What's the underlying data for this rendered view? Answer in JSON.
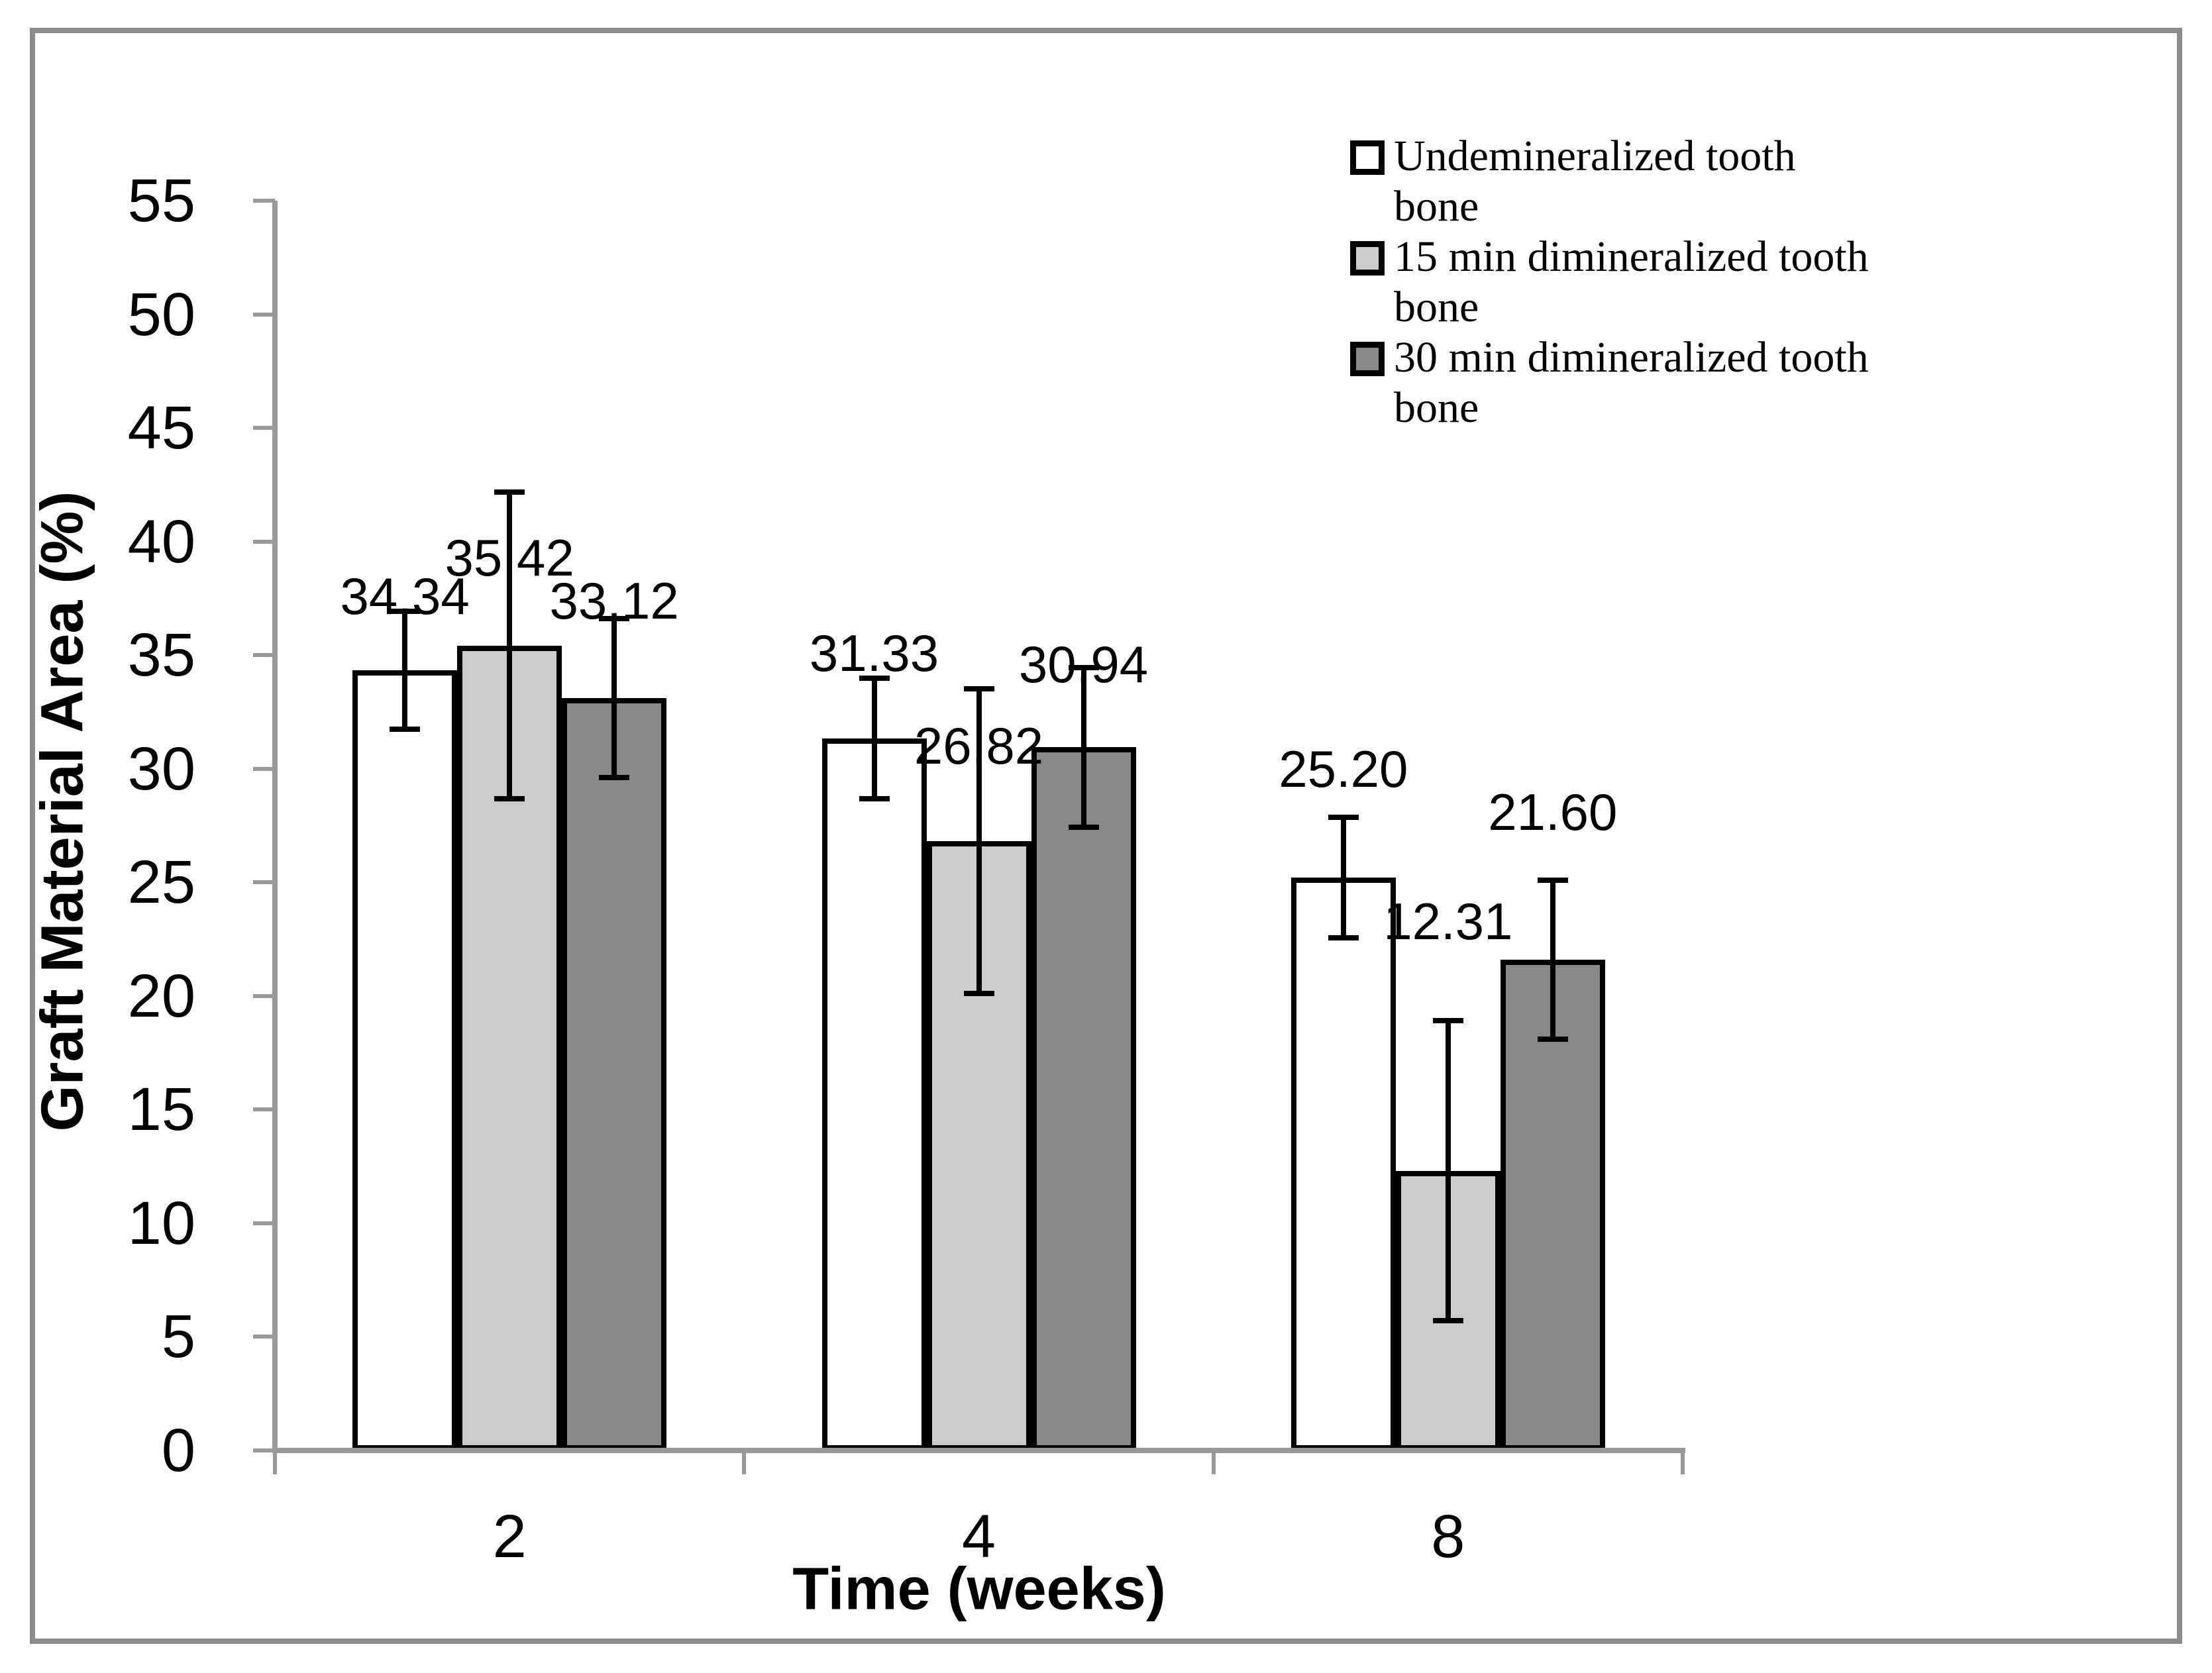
{
  "figure": {
    "background": "#ffffff",
    "border_color": "#8c8c8c",
    "axis_color": "#999999"
  },
  "chart_data": {
    "type": "bar",
    "title": "",
    "xlabel": "Time (weeks)",
    "ylabel": "Graft Material Area (%)",
    "ylim": [
      0,
      55
    ],
    "ytick_step": 5,
    "y_ticks": [
      0,
      5,
      10,
      15,
      20,
      25,
      30,
      35,
      40,
      45,
      50,
      55
    ],
    "categories": [
      "2",
      "4",
      "8"
    ],
    "grid": false,
    "legend_position": "top-right",
    "bar_outline": "#000000",
    "error_bars": "symmetric, black with caps",
    "series": [
      {
        "name": "Undemineralized tooth bone",
        "legend_lines": [
          "Undemineralized tooth",
          "bone"
        ],
        "fill": "#ffffff",
        "values": [
          34.34,
          31.33,
          25.2
        ],
        "labels": [
          "34.34",
          "31.33",
          "25.20"
        ],
        "errors": [
          2.6,
          2.65,
          2.65
        ],
        "label_y": [
          37.6,
          35.1,
          30.0
        ]
      },
      {
        "name": "15 min dimineralized tooth bone",
        "legend_lines": [
          "15 min dimineralized tooth",
          "bone"
        ],
        "fill": "#cccccc",
        "values": [
          35.42,
          26.82,
          12.31
        ],
        "labels": [
          "35.42",
          "26.82",
          "12.31"
        ],
        "errors": [
          6.75,
          6.7,
          6.6
        ],
        "label_y": [
          39.3,
          31.0,
          23.3
        ]
      },
      {
        "name": "30 min dimineralized tooth bone",
        "legend_lines": [
          "30 min dimineralized tooth",
          "bone"
        ],
        "fill": "#898989",
        "values": [
          33.12,
          30.94,
          21.6
        ],
        "labels": [
          "33.12",
          "30.94",
          "21.60"
        ],
        "errors": [
          3.5,
          3.5,
          3.5
        ],
        "label_y": [
          37.4,
          34.6,
          28.1
        ]
      }
    ]
  }
}
